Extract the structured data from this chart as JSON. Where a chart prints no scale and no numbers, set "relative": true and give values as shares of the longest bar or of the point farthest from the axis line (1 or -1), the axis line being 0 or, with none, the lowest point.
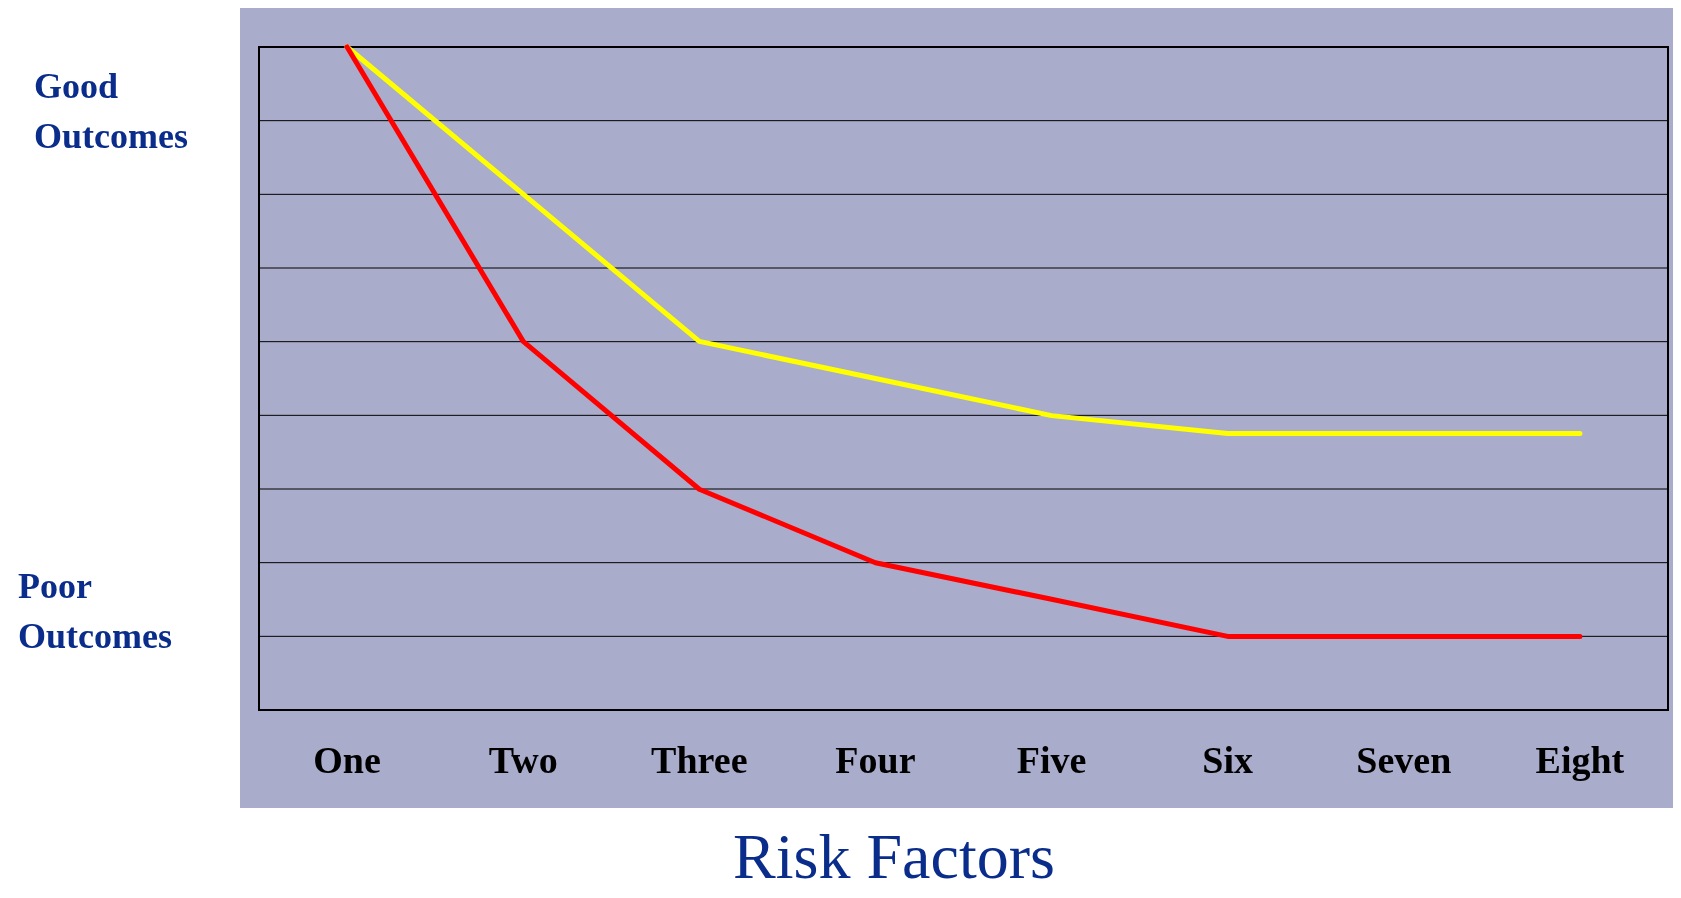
{
  "chart_data": {
    "type": "line",
    "relative": true,
    "xlabel": "Risk Factors",
    "categories": [
      "One",
      "Two",
      "Three",
      "Four",
      "Five",
      "Six",
      "Seven",
      "Eight"
    ],
    "series": [
      {
        "color": "#ffff00",
        "values": [
          1,
          0.778,
          0.556,
          0.5,
          0.444,
          0.417,
          0.417,
          0.417
        ]
      },
      {
        "color": "#ff0000",
        "values": [
          1,
          0.556,
          0.333,
          0.222,
          0.167,
          0.111,
          0.111,
          0.111
        ]
      }
    ],
    "annotations": [
      "Good Outcomes",
      "Poor Outcomes"
    ],
    "grid": "y",
    "marker": "none",
    "line_style": "solid"
  }
}
